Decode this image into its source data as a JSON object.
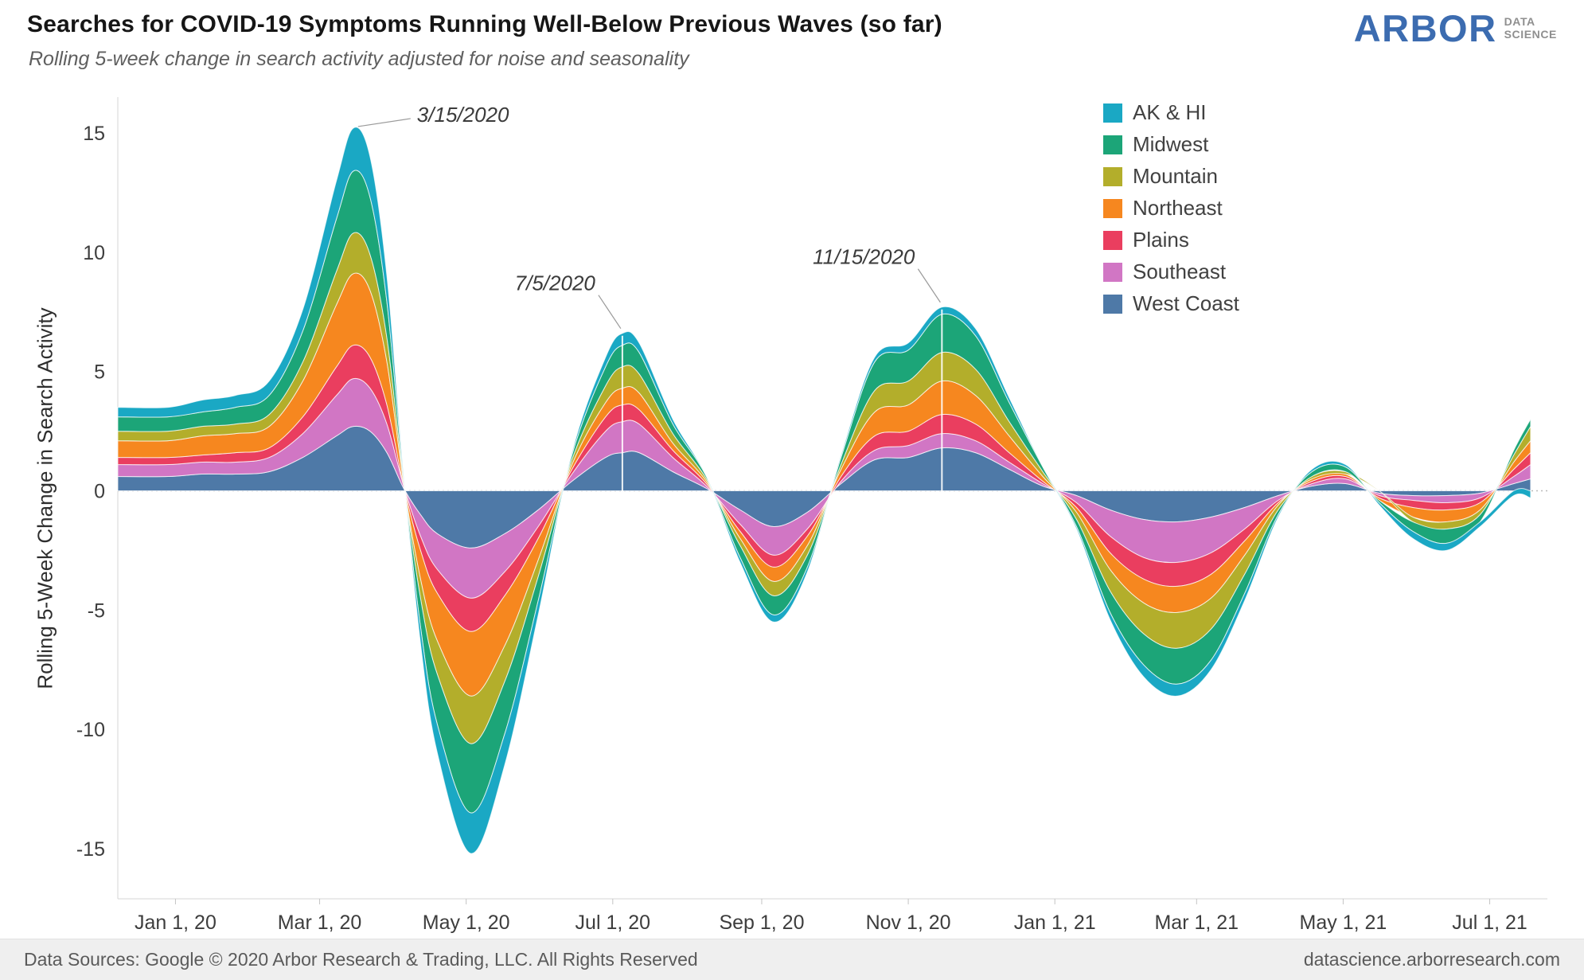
{
  "header": {
    "title": "Searches for COVID-19 Symptoms Running Well-Below Previous Waves (so far)",
    "subtitle": "Rolling 5-week change in search activity adjusted for noise and seasonality"
  },
  "logo": {
    "brand": "ARBOR",
    "tag_line1": "DATA",
    "tag_line2": "SCIENCE",
    "brand_color": "#3c6cb0"
  },
  "footer": {
    "left": "Data Sources: Google © 2020 Arbor Research & Trading, LLC. All Rights Reserved",
    "right": "datascience.arborresearch.com"
  },
  "chart_data": {
    "type": "area",
    "stacked": true,
    "title": "Searches for COVID-19 Symptoms Running Well-Below Previous Waves (so far)",
    "subtitle": "Rolling 5-week change in search activity adjusted for noise and seasonality",
    "xlabel": "",
    "ylabel": "Rolling 5-Week Change in Search Activity",
    "ylim": [
      -17.1,
      16.5
    ],
    "yticks": [
      15,
      10,
      5,
      0,
      -5,
      -10,
      -15
    ],
    "grid": "zero-line-only",
    "legend_position": "top-right",
    "stack_note": "series listed bottom-to-top; legend displays reverse order (alphabetical)",
    "x_domain": [
      "2019-12-08",
      "2021-07-25"
    ],
    "xticks": [
      {
        "date": "2020-01-01",
        "label": "Jan 1, 20"
      },
      {
        "date": "2020-03-01",
        "label": "Mar 1, 20"
      },
      {
        "date": "2020-05-01",
        "label": "May 1, 20"
      },
      {
        "date": "2020-07-01",
        "label": "Jul 1, 20"
      },
      {
        "date": "2020-09-01",
        "label": "Sep 1, 20"
      },
      {
        "date": "2020-11-01",
        "label": "Nov 1, 20"
      },
      {
        "date": "2021-01-01",
        "label": "Jan 1, 21"
      },
      {
        "date": "2021-03-01",
        "label": "Mar 1, 21"
      },
      {
        "date": "2021-05-01",
        "label": "May 1, 21"
      },
      {
        "date": "2021-07-01",
        "label": "Jul 1, 21"
      }
    ],
    "x": [
      "2019-12-08",
      "2019-12-29",
      "2020-01-12",
      "2020-01-26",
      "2020-02-09",
      "2020-02-23",
      "2020-03-08",
      "2020-03-15",
      "2020-03-22",
      "2020-03-29",
      "2020-04-05",
      "2020-04-12",
      "2020-04-19",
      "2020-05-03",
      "2020-05-17",
      "2020-05-31",
      "2020-06-14",
      "2020-06-28",
      "2020-07-05",
      "2020-07-12",
      "2020-07-26",
      "2020-08-09",
      "2020-08-23",
      "2020-09-06",
      "2020-09-20",
      "2020-10-04",
      "2020-10-18",
      "2020-11-01",
      "2020-11-15",
      "2020-11-29",
      "2020-12-13",
      "2020-12-27",
      "2021-01-10",
      "2021-01-24",
      "2021-02-07",
      "2021-02-21",
      "2021-03-07",
      "2021-03-21",
      "2021-04-04",
      "2021-04-18",
      "2021-05-02",
      "2021-05-16",
      "2021-05-30",
      "2021-06-13",
      "2021-06-27",
      "2021-07-11",
      "2021-07-18"
    ],
    "series": [
      {
        "name": "West Coast",
        "color": "#4e79a7",
        "values": [
          0.6,
          0.6,
          0.7,
          0.7,
          0.8,
          1.4,
          2.3,
          2.7,
          2.5,
          1.6,
          0.1,
          -1.0,
          -1.8,
          -2.4,
          -1.8,
          -0.8,
          0.4,
          1.4,
          1.6,
          1.6,
          0.8,
          0.1,
          -0.8,
          -1.5,
          -0.9,
          0.3,
          1.3,
          1.4,
          1.8,
          1.6,
          0.9,
          0.2,
          -0.2,
          -0.8,
          -1.2,
          -1.3,
          -1.1,
          -0.7,
          -0.2,
          0.2,
          0.3,
          -0.1,
          -0.2,
          -0.2,
          -0.1,
          0.3,
          0.5
        ]
      },
      {
        "name": "Southeast",
        "color": "#d176c4",
        "values": [
          0.5,
          0.5,
          0.5,
          0.5,
          0.6,
          1.0,
          1.7,
          2.0,
          1.8,
          1.2,
          0.1,
          -0.9,
          -1.5,
          -2.1,
          -1.6,
          -0.7,
          0.3,
          1.1,
          1.3,
          1.2,
          0.6,
          0.1,
          -0.6,
          -1.2,
          -0.7,
          0.1,
          0.4,
          0.5,
          0.6,
          0.5,
          0.3,
          0.1,
          -0.3,
          -1.1,
          -1.6,
          -1.7,
          -1.5,
          -0.9,
          -0.2,
          0.1,
          0.2,
          -0.1,
          -0.2,
          -0.3,
          -0.2,
          0.3,
          0.6
        ]
      },
      {
        "name": "Plains",
        "color": "#ea3e5f",
        "values": [
          0.3,
          0.3,
          0.3,
          0.4,
          0.4,
          0.7,
          1.2,
          1.4,
          1.3,
          0.8,
          0.0,
          -0.6,
          -1.0,
          -1.4,
          -1.0,
          -0.5,
          0.2,
          0.6,
          0.7,
          0.6,
          0.3,
          0.1,
          -0.3,
          -0.5,
          -0.3,
          0.2,
          0.6,
          0.6,
          0.8,
          0.7,
          0.4,
          0.1,
          -0.2,
          -0.7,
          -0.9,
          -1.0,
          -0.9,
          -0.5,
          -0.1,
          0.1,
          0.1,
          -0.1,
          -0.3,
          -0.3,
          -0.2,
          0.3,
          0.5
        ]
      },
      {
        "name": "Northeast",
        "color": "#f6871f",
        "values": [
          0.7,
          0.7,
          0.8,
          0.8,
          0.9,
          1.5,
          2.6,
          3.0,
          2.8,
          1.8,
          0.1,
          -1.2,
          -2.0,
          -2.7,
          -2.1,
          -0.9,
          0.2,
          0.6,
          0.7,
          0.7,
          0.3,
          0.1,
          -0.3,
          -0.6,
          -0.4,
          0.3,
          1.0,
          1.1,
          1.4,
          1.2,
          0.7,
          0.2,
          -0.2,
          -0.7,
          -1.0,
          -1.1,
          -1.0,
          -0.6,
          -0.1,
          0.1,
          0.1,
          -0.1,
          -0.4,
          -0.5,
          -0.3,
          0.3,
          0.5
        ]
      },
      {
        "name": "Mountain",
        "color": "#b3ae2b",
        "values": [
          0.4,
          0.4,
          0.4,
          0.4,
          0.5,
          0.8,
          1.4,
          1.7,
          1.5,
          1.0,
          0.1,
          -0.8,
          -1.4,
          -2.0,
          -1.5,
          -0.7,
          0.2,
          0.7,
          0.9,
          0.8,
          0.4,
          0.1,
          -0.3,
          -0.6,
          -0.4,
          0.2,
          0.9,
          1.0,
          1.2,
          1.1,
          0.6,
          0.2,
          -0.3,
          -0.9,
          -1.3,
          -1.5,
          -1.3,
          -0.8,
          -0.2,
          0.1,
          0.1,
          0.0,
          -0.2,
          -0.3,
          -0.2,
          0.3,
          0.6
        ]
      },
      {
        "name": "Midwest",
        "color": "#1ca578",
        "values": [
          0.6,
          0.6,
          0.6,
          0.7,
          0.8,
          1.3,
          2.2,
          2.6,
          2.4,
          1.5,
          0.1,
          -1.2,
          -2.1,
          -2.9,
          -2.2,
          -1.0,
          0.2,
          0.8,
          0.9,
          0.9,
          0.4,
          0.1,
          -0.5,
          -0.8,
          -0.5,
          0.3,
          1.2,
          1.3,
          1.6,
          1.4,
          0.8,
          0.2,
          -0.3,
          -0.9,
          -1.3,
          -1.5,
          -1.3,
          -0.8,
          -0.2,
          0.2,
          0.2,
          -0.1,
          -0.4,
          -0.6,
          -0.3,
          0.2,
          0.3
        ]
      },
      {
        "name": "AK & HI",
        "color": "#1aa8c4",
        "values": [
          0.4,
          0.4,
          0.5,
          0.5,
          0.6,
          0.9,
          1.6,
          1.8,
          1.7,
          1.1,
          0.1,
          -0.7,
          -1.2,
          -1.7,
          -1.3,
          -0.6,
          0.1,
          0.4,
          0.5,
          0.4,
          0.2,
          0.0,
          -0.2,
          -0.3,
          -0.2,
          0.1,
          0.2,
          0.3,
          0.3,
          0.3,
          0.2,
          0.0,
          -0.1,
          -0.3,
          -0.5,
          -0.5,
          -0.4,
          -0.3,
          -0.1,
          0.1,
          0.1,
          -0.1,
          -0.3,
          -0.3,
          -0.2,
          -0.2,
          -0.3
        ]
      }
    ],
    "annotations": [
      {
        "label": "3/15/2020",
        "date": "2020-03-15",
        "value": 15.2,
        "align": "left",
        "dropline": false
      },
      {
        "label": "7/5/2020",
        "date": "2020-07-05",
        "value": 6.6,
        "align": "right",
        "dropline": true
      },
      {
        "label": "11/15/2020",
        "date": "2020-11-15",
        "value": 7.7,
        "align": "right",
        "dropline": true
      }
    ]
  }
}
